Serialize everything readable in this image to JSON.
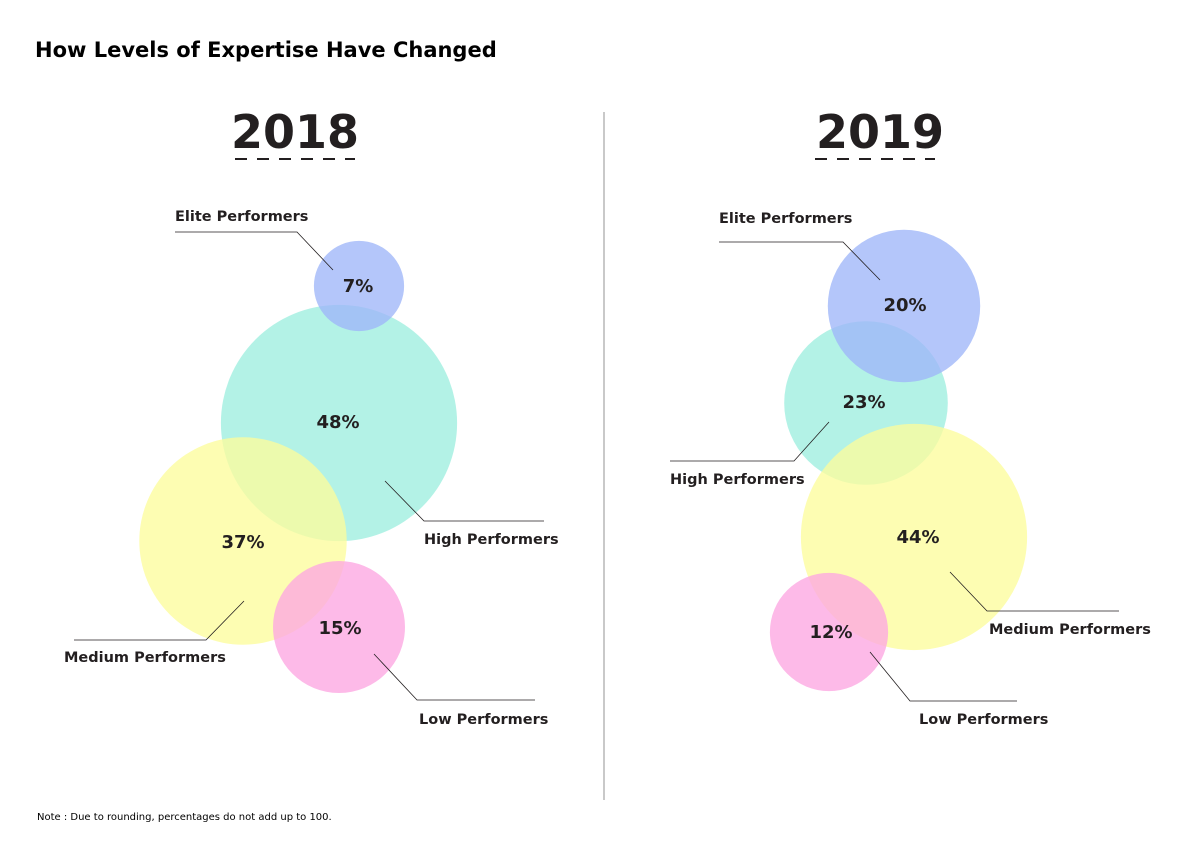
{
  "title": "How Levels of Expertise Have Changed",
  "note": "Note : Due to rounding, percentages do not add up to 100.",
  "colors": {
    "elite": "#9fb6f9",
    "high": "#9eeedf",
    "medium": "#fcfc9c",
    "low": "#fca6e2",
    "text": "#231f20",
    "leader": "#231f20",
    "divider": "#b7b7b7"
  },
  "chart_data": [
    {
      "type": "bubble",
      "year": "2018",
      "series": [
        {
          "name": "Elite Performers",
          "key": "elite",
          "value": 7,
          "label": "7%"
        },
        {
          "name": "High Performers",
          "key": "high",
          "value": 48,
          "label": "48%"
        },
        {
          "name": "Medium Performers",
          "key": "medium",
          "value": 37,
          "label": "37%"
        },
        {
          "name": "Low Performers",
          "key": "low",
          "value": 15,
          "label": "15%"
        }
      ]
    },
    {
      "type": "bubble",
      "year": "2019",
      "series": [
        {
          "name": "Elite Performers",
          "key": "elite",
          "value": 20,
          "label": "20%"
        },
        {
          "name": "High Performers",
          "key": "high",
          "value": 23,
          "label": "23%"
        },
        {
          "name": "Medium Performers",
          "key": "medium",
          "value": 44,
          "label": "44%"
        },
        {
          "name": "Low Performers",
          "key": "low",
          "value": 12,
          "label": "12%"
        }
      ]
    }
  ]
}
